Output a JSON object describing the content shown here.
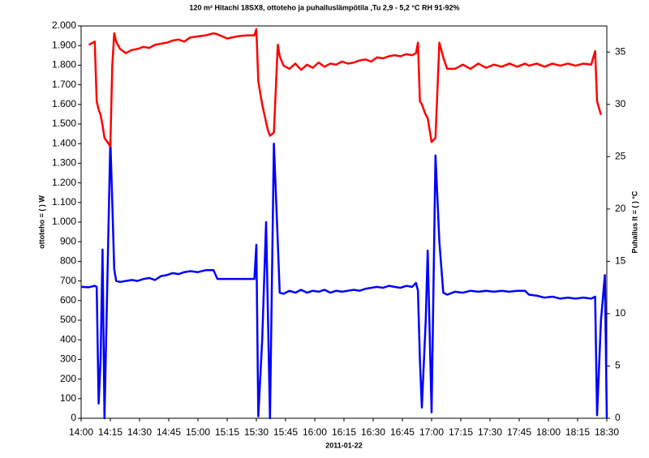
{
  "chart_data": {
    "type": "line",
    "title": "120 m² Hitachi 18SX8, ottoteho ja puhalluslämpötila ,Tu 2,9 - 5,2 °C RH 91-92%",
    "xlabel": "2011-01-22",
    "ylabel": "ottoteho = ( ) W",
    "y2label": "Puhallus lt = ( ) °C",
    "x": [
      "14:00",
      "14:04",
      "14:07",
      "14:08",
      "14:09",
      "14:10",
      "14:11",
      "14:12",
      "14:15",
      "14:16",
      "14:17",
      "14:18",
      "14:20",
      "14:23",
      "14:26",
      "14:29",
      "14:32",
      "14:35",
      "14:38",
      "14:41",
      "14:44",
      "14:47",
      "14:50",
      "14:53",
      "14:56",
      "15:00",
      "15:04",
      "15:08",
      "15:10",
      "15:15",
      "15:20",
      "15:25",
      "15:29",
      "15:30",
      "15:31",
      "15:33",
      "15:35",
      "15:36",
      "15:37",
      "15:39",
      "15:41",
      "15:42",
      "15:44",
      "15:47",
      "15:50",
      "15:53",
      "15:56",
      "15:59",
      "16:02",
      "16:05",
      "16:08",
      "16:11",
      "16:14",
      "16:17",
      "16:20",
      "16:23",
      "16:26",
      "16:29",
      "16:32",
      "16:35",
      "16:38",
      "16:41",
      "16:44",
      "16:47",
      "16:50",
      "16:52",
      "16:53",
      "16:54",
      "16:55",
      "16:57",
      "16:58",
      "17:00",
      "17:02",
      "17:04",
      "17:06",
      "17:08",
      "17:12",
      "17:16",
      "17:20",
      "17:24",
      "17:28",
      "17:32",
      "17:36",
      "17:40",
      "17:44",
      "17:48",
      "17:50",
      "17:54",
      "17:58",
      "18:02",
      "18:06",
      "18:10",
      "18:14",
      "18:18",
      "18:22",
      "18:24",
      "18:25",
      "18:27",
      "18:29",
      "18:30"
    ],
    "series": [
      {
        "name": "ottoteho",
        "color": "#0000ff",
        "values": [
          670,
          668,
          675,
          670,
          75,
          300,
          860,
          0,
          1420,
          1100,
          760,
          700,
          695,
          700,
          705,
          700,
          710,
          715,
          705,
          725,
          730,
          740,
          735,
          745,
          750,
          745,
          755,
          755,
          710,
          710,
          710,
          710,
          710,
          885,
          10,
          400,
          1000,
          500,
          0,
          1400,
          900,
          640,
          635,
          650,
          640,
          655,
          640,
          650,
          645,
          655,
          640,
          650,
          645,
          650,
          655,
          650,
          660,
          665,
          670,
          665,
          675,
          670,
          665,
          675,
          670,
          690,
          650,
          300,
          55,
          500,
          855,
          30,
          1340,
          900,
          640,
          630,
          645,
          640,
          650,
          645,
          650,
          645,
          650,
          645,
          650,
          650,
          630,
          625,
          615,
          620,
          610,
          615,
          610,
          615,
          610,
          620,
          15,
          500,
          730,
          0
        ]
      },
      {
        "name": "Puhallus lt",
        "color": "#ff0000",
        "axis": "y2",
        "values": [
          null,
          35.7,
          36.0,
          30.3,
          29.5,
          29.0,
          28.0,
          26.8,
          26.0,
          33.7,
          36.8,
          36.0,
          35.3,
          34.9,
          35.2,
          35.3,
          35.5,
          35.4,
          35.7,
          35.8,
          35.9,
          36.1,
          36.2,
          36.0,
          36.4,
          36.5,
          36.6,
          36.8,
          36.7,
          36.3,
          36.5,
          36.6,
          36.6,
          37.2,
          32.2,
          30.0,
          28.3,
          27.5,
          27.0,
          27.3,
          35.7,
          34.6,
          33.7,
          33.4,
          33.9,
          33.3,
          33.8,
          33.5,
          34.0,
          33.6,
          33.9,
          33.8,
          34.1,
          33.9,
          34.0,
          34.2,
          34.3,
          34.1,
          34.5,
          34.4,
          34.6,
          34.7,
          34.6,
          34.8,
          34.7,
          34.9,
          35.9,
          30.3,
          30.0,
          29.0,
          28.7,
          26.4,
          26.8,
          35.9,
          34.5,
          33.4,
          33.4,
          33.8,
          33.4,
          33.9,
          33.5,
          33.8,
          33.6,
          33.9,
          33.6,
          33.9,
          33.7,
          33.9,
          33.6,
          33.9,
          33.7,
          33.9,
          33.7,
          33.9,
          33.8,
          35.1,
          30.3,
          29.0,
          null,
          null
        ]
      }
    ],
    "xlim": [
      "14:00",
      "18:30"
    ],
    "xticks": [
      "14:00",
      "14:15",
      "14:30",
      "14:45",
      "15:00",
      "15:15",
      "15:30",
      "15:45",
      "16:00",
      "16:15",
      "16:30",
      "16:45",
      "17:00",
      "17:15",
      "17:30",
      "17:45",
      "18:00",
      "18:15",
      "18:30"
    ],
    "ylim": [
      0,
      2000
    ],
    "yticks": [
      0,
      100,
      200,
      300,
      400,
      500,
      600,
      700,
      800,
      900,
      {
        "value": 1000,
        "label": "1.000"
      },
      {
        "value": 1100,
        "label": "1.100"
      },
      {
        "value": 1200,
        "label": "1.200"
      },
      {
        "value": 1300,
        "label": "1.300"
      },
      {
        "value": 1400,
        "label": "1.400"
      },
      {
        "value": 1500,
        "label": "1.500"
      },
      {
        "value": 1600,
        "label": "1.600"
      },
      {
        "value": 1700,
        "label": "1.700"
      },
      {
        "value": 1800,
        "label": "1.800"
      },
      {
        "value": 1900,
        "label": "1.900"
      },
      {
        "value": 2000,
        "label": "2.000"
      }
    ],
    "y2lim": [
      0,
      37.5
    ],
    "y2ticks": [
      0,
      5,
      10,
      15,
      20,
      25,
      30,
      35
    ],
    "grid": false
  }
}
